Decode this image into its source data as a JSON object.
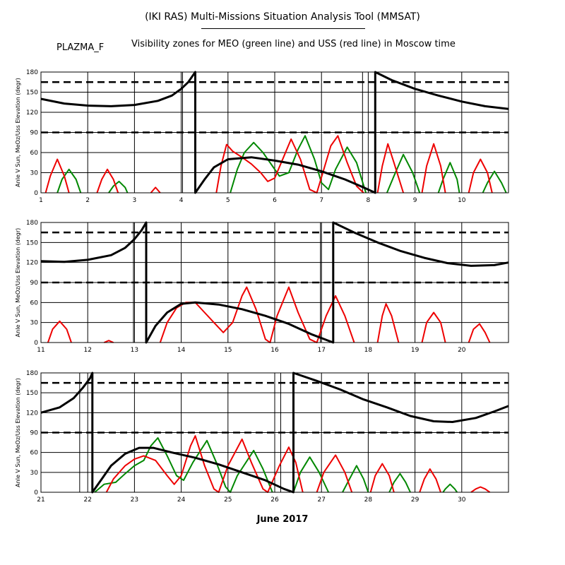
{
  "header": {
    "title": "(IKI RAS) Multi-Missions Situation Analysis Tool (MMSAT)",
    "satellite": "PLAZMA_F",
    "subtitle": "Visibility zones for MEO (green line) and USS (red line) in Moscow time"
  },
  "footer": {
    "month": "June 2017"
  },
  "colors": {
    "sun": "#000000",
    "meo": "#008800",
    "uss": "#ee0000"
  },
  "chart_data": [
    {
      "type": "line",
      "ylabel": "Anle V Sun, MeOz/Uss Elevation (degr)",
      "xlim": [
        1,
        11
      ],
      "ylim": [
        0,
        180
      ],
      "x_ticks": [
        1,
        2,
        3,
        4,
        5,
        6,
        7,
        8,
        9,
        10
      ],
      "y_ticks": [
        0,
        30,
        60,
        90,
        120,
        150,
        180
      ],
      "reference_lines": [
        90,
        165
      ],
      "vertical_markers": [
        4.3,
        8.15
      ],
      "sun_angle": [
        [
          1.0,
          140
        ],
        [
          1.5,
          133
        ],
        [
          2.0,
          130
        ],
        [
          2.5,
          129
        ],
        [
          3.0,
          131
        ],
        [
          3.5,
          137
        ],
        [
          3.8,
          145
        ],
        [
          4.0,
          155
        ],
        [
          4.15,
          165
        ],
        [
          4.3,
          180
        ],
        [
          4.3,
          0
        ],
        [
          4.5,
          20
        ],
        [
          4.7,
          38
        ],
        [
          5.0,
          50
        ],
        [
          5.5,
          53
        ],
        [
          6.0,
          48
        ],
        [
          6.5,
          42
        ],
        [
          7.0,
          32
        ],
        [
          7.5,
          20
        ],
        [
          7.9,
          8
        ],
        [
          8.15,
          0
        ],
        [
          8.15,
          180
        ],
        [
          8.5,
          168
        ],
        [
          9.0,
          155
        ],
        [
          9.5,
          145
        ],
        [
          10.0,
          136
        ],
        [
          10.5,
          129
        ],
        [
          11.0,
          125
        ]
      ],
      "uss": [
        [
          1.1,
          0
        ],
        [
          1.2,
          25
        ],
        [
          1.35,
          50
        ],
        [
          1.5,
          25
        ],
        [
          1.6,
          0
        ],
        [
          null,
          null
        ],
        [
          2.2,
          0
        ],
        [
          2.3,
          20
        ],
        [
          2.42,
          35
        ],
        [
          2.55,
          20
        ],
        [
          2.65,
          0
        ],
        [
          null,
          null
        ],
        [
          3.35,
          0
        ],
        [
          3.45,
          8
        ],
        [
          3.55,
          0
        ],
        [
          null,
          null
        ],
        [
          4.75,
          0
        ],
        [
          4.85,
          40
        ],
        [
          4.97,
          72
        ],
        [
          5.1,
          62
        ],
        [
          5.3,
          53
        ],
        [
          5.5,
          43
        ],
        [
          5.7,
          30
        ],
        [
          5.85,
          17
        ],
        [
          6.0,
          22
        ],
        [
          6.2,
          55
        ],
        [
          6.35,
          80
        ],
        [
          6.55,
          50
        ],
        [
          6.75,
          5
        ],
        [
          6.9,
          0
        ],
        [
          7.05,
          35
        ],
        [
          7.2,
          70
        ],
        [
          7.35,
          85
        ],
        [
          7.55,
          45
        ],
        [
          7.75,
          10
        ],
        [
          7.9,
          0
        ],
        [
          null,
          null
        ],
        [
          8.2,
          0
        ],
        [
          8.3,
          40
        ],
        [
          8.42,
          73
        ],
        [
          8.55,
          45
        ],
        [
          8.75,
          0
        ],
        [
          null,
          null
        ],
        [
          9.15,
          0
        ],
        [
          9.25,
          40
        ],
        [
          9.4,
          73
        ],
        [
          9.55,
          40
        ],
        [
          9.65,
          0
        ],
        [
          null,
          null
        ],
        [
          10.15,
          0
        ],
        [
          10.25,
          30
        ],
        [
          10.4,
          50
        ],
        [
          10.55,
          30
        ],
        [
          10.65,
          0
        ]
      ],
      "meo": [
        [
          1.35,
          0
        ],
        [
          1.45,
          20
        ],
        [
          1.6,
          35
        ],
        [
          1.75,
          20
        ],
        [
          1.85,
          0
        ],
        [
          null,
          null
        ],
        [
          2.45,
          0
        ],
        [
          2.55,
          10
        ],
        [
          2.67,
          17
        ],
        [
          2.8,
          8
        ],
        [
          2.85,
          0
        ],
        [
          null,
          null
        ],
        [
          5.05,
          0
        ],
        [
          5.2,
          35
        ],
        [
          5.35,
          60
        ],
        [
          5.55,
          75
        ],
        [
          5.75,
          60
        ],
        [
          5.95,
          40
        ],
        [
          6.1,
          25
        ],
        [
          6.3,
          30
        ],
        [
          6.5,
          65
        ],
        [
          6.65,
          85
        ],
        [
          6.85,
          50
        ],
        [
          7.0,
          15
        ],
        [
          7.15,
          5
        ],
        [
          7.3,
          35
        ],
        [
          7.55,
          68
        ],
        [
          7.75,
          45
        ],
        [
          7.95,
          0
        ],
        [
          null,
          null
        ],
        [
          8.4,
          0
        ],
        [
          8.55,
          25
        ],
        [
          8.75,
          57
        ],
        [
          8.95,
          30
        ],
        [
          9.1,
          0
        ],
        [
          null,
          null
        ],
        [
          9.5,
          0
        ],
        [
          9.6,
          20
        ],
        [
          9.75,
          45
        ],
        [
          9.9,
          20
        ],
        [
          9.95,
          0
        ],
        [
          null,
          null
        ],
        [
          10.45,
          0
        ],
        [
          10.55,
          15
        ],
        [
          10.7,
          32
        ],
        [
          10.85,
          15
        ],
        [
          10.95,
          0
        ]
      ]
    },
    {
      "type": "line",
      "ylabel": "Anle V Sun, MeOz/Uss Elevation (degr)",
      "xlim": [
        11,
        21
      ],
      "ylim": [
        0,
        180
      ],
      "x_ticks": [
        11,
        12,
        13,
        14,
        15,
        16,
        17,
        18,
        19,
        20
      ],
      "y_ticks": [
        0,
        30,
        60,
        90,
        120,
        150,
        180
      ],
      "reference_lines": [
        90,
        165
      ],
      "vertical_markers": [
        13.25,
        17.25
      ],
      "sun_angle": [
        [
          11.0,
          122
        ],
        [
          11.5,
          121
        ],
        [
          12.0,
          124
        ],
        [
          12.5,
          131
        ],
        [
          12.8,
          142
        ],
        [
          13.0,
          155
        ],
        [
          13.15,
          168
        ],
        [
          13.25,
          180
        ],
        [
          13.25,
          0
        ],
        [
          13.45,
          25
        ],
        [
          13.7,
          45
        ],
        [
          14.0,
          58
        ],
        [
          14.3,
          60
        ],
        [
          14.8,
          57
        ],
        [
          15.3,
          50
        ],
        [
          15.8,
          40
        ],
        [
          16.3,
          28
        ],
        [
          16.8,
          12
        ],
        [
          17.25,
          0
        ],
        [
          17.25,
          180
        ],
        [
          17.7,
          165
        ],
        [
          18.2,
          150
        ],
        [
          18.7,
          137
        ],
        [
          19.2,
          127
        ],
        [
          19.7,
          119
        ],
        [
          20.2,
          115
        ],
        [
          20.7,
          116
        ],
        [
          21.0,
          120
        ]
      ],
      "uss": [
        [
          11.15,
          0
        ],
        [
          11.25,
          20
        ],
        [
          11.4,
          32
        ],
        [
          11.55,
          20
        ],
        [
          11.65,
          0
        ],
        [
          null,
          null
        ],
        [
          12.35,
          0
        ],
        [
          12.45,
          3
        ],
        [
          12.55,
          0
        ],
        [
          null,
          null
        ],
        [
          13.55,
          0
        ],
        [
          13.7,
          30
        ],
        [
          13.9,
          52
        ],
        [
          14.1,
          60
        ],
        [
          14.3,
          60
        ],
        [
          14.5,
          45
        ],
        [
          14.7,
          30
        ],
        [
          14.9,
          15
        ],
        [
          15.1,
          30
        ],
        [
          15.3,
          70
        ],
        [
          15.4,
          83
        ],
        [
          15.6,
          50
        ],
        [
          15.8,
          5
        ],
        [
          15.9,
          0
        ],
        [
          16.05,
          40
        ],
        [
          16.3,
          83
        ],
        [
          16.5,
          45
        ],
        [
          16.75,
          5
        ],
        [
          16.9,
          0
        ],
        [
          17.1,
          40
        ],
        [
          17.3,
          70
        ],
        [
          17.5,
          40
        ],
        [
          17.7,
          0
        ],
        [
          null,
          null
        ],
        [
          18.2,
          0
        ],
        [
          18.3,
          40
        ],
        [
          18.38,
          58
        ],
        [
          18.5,
          40
        ],
        [
          18.65,
          0
        ],
        [
          null,
          null
        ],
        [
          19.15,
          0
        ],
        [
          19.25,
          30
        ],
        [
          19.4,
          45
        ],
        [
          19.55,
          30
        ],
        [
          19.65,
          0
        ],
        [
          null,
          null
        ],
        [
          20.15,
          0
        ],
        [
          20.25,
          20
        ],
        [
          20.38,
          28
        ],
        [
          20.5,
          15
        ],
        [
          20.6,
          0
        ]
      ]
    },
    {
      "type": "line",
      "ylabel": "Anle V Sun, MeOz/Uss Elevation (degr)",
      "xlim": [
        21,
        31
      ],
      "ylim": [
        0,
        180
      ],
      "x_ticks": [
        21,
        22,
        23,
        24,
        25,
        26,
        27,
        28,
        29,
        30
      ],
      "y_ticks": [
        0,
        30,
        60,
        90,
        120,
        150,
        180
      ],
      "reference_lines": [
        90,
        165
      ],
      "vertical_markers": [
        22.1,
        26.4
      ],
      "sun_angle": [
        [
          21.0,
          120
        ],
        [
          21.4,
          128
        ],
        [
          21.7,
          142
        ],
        [
          21.9,
          158
        ],
        [
          22.05,
          172
        ],
        [
          22.1,
          180
        ],
        [
          22.1,
          0
        ],
        [
          22.3,
          20
        ],
        [
          22.5,
          40
        ],
        [
          22.8,
          58
        ],
        [
          23.1,
          67
        ],
        [
          23.4,
          67
        ],
        [
          23.8,
          60
        ],
        [
          24.3,
          52
        ],
        [
          24.8,
          42
        ],
        [
          25.3,
          30
        ],
        [
          25.8,
          18
        ],
        [
          26.2,
          5
        ],
        [
          26.4,
          0
        ],
        [
          26.4,
          180
        ],
        [
          26.9,
          168
        ],
        [
          27.4,
          155
        ],
        [
          27.9,
          140
        ],
        [
          28.4,
          128
        ],
        [
          28.9,
          115
        ],
        [
          29.4,
          107
        ],
        [
          29.8,
          106
        ],
        [
          30.3,
          112
        ],
        [
          30.7,
          122
        ],
        [
          31.0,
          130
        ]
      ],
      "uss": [
        [
          22.4,
          0
        ],
        [
          22.55,
          20
        ],
        [
          22.8,
          40
        ],
        [
          23.0,
          50
        ],
        [
          23.2,
          55
        ],
        [
          23.45,
          48
        ],
        [
          23.7,
          25
        ],
        [
          23.85,
          12
        ],
        [
          24.0,
          25
        ],
        [
          24.2,
          70
        ],
        [
          24.3,
          85
        ],
        [
          24.5,
          40
        ],
        [
          24.7,
          5
        ],
        [
          24.8,
          0
        ],
        [
          25.0,
          40
        ],
        [
          25.3,
          80
        ],
        [
          25.5,
          45
        ],
        [
          25.75,
          5
        ],
        [
          25.85,
          0
        ],
        [
          26.1,
          40
        ],
        [
          26.3,
          68
        ],
        [
          26.45,
          45
        ],
        [
          26.6,
          0
        ],
        [
          null,
          null
        ],
        [
          26.9,
          0
        ],
        [
          27.05,
          30
        ],
        [
          27.3,
          56
        ],
        [
          27.5,
          30
        ],
        [
          27.65,
          0
        ],
        [
          null,
          null
        ],
        [
          28.05,
          0
        ],
        [
          28.15,
          25
        ],
        [
          28.3,
          43
        ],
        [
          28.45,
          25
        ],
        [
          28.55,
          0
        ],
        [
          null,
          null
        ],
        [
          29.1,
          0
        ],
        [
          29.2,
          20
        ],
        [
          29.32,
          35
        ],
        [
          29.45,
          20
        ],
        [
          29.55,
          0
        ],
        [
          null,
          null
        ],
        [
          30.2,
          0
        ],
        [
          30.3,
          5
        ],
        [
          30.4,
          8
        ],
        [
          30.5,
          5
        ],
        [
          30.6,
          0
        ]
      ],
      "meo": [
        [
          22.15,
          0
        ],
        [
          22.35,
          12
        ],
        [
          22.6,
          15
        ],
        [
          22.8,
          28
        ],
        [
          23.0,
          40
        ],
        [
          23.2,
          48
        ],
        [
          23.35,
          70
        ],
        [
          23.5,
          82
        ],
        [
          23.7,
          55
        ],
        [
          23.9,
          25
        ],
        [
          24.05,
          18
        ],
        [
          24.25,
          45
        ],
        [
          24.55,
          78
        ],
        [
          24.75,
          45
        ],
        [
          24.95,
          8
        ],
        [
          25.05,
          0
        ],
        [
          25.2,
          25
        ],
        [
          25.55,
          63
        ],
        [
          25.75,
          35
        ],
        [
          25.95,
          0
        ],
        [
          null,
          null
        ],
        [
          26.4,
          0
        ],
        [
          26.55,
          30
        ],
        [
          26.75,
          53
        ],
        [
          26.95,
          30
        ],
        [
          27.15,
          0
        ],
        [
          null,
          null
        ],
        [
          27.45,
          0
        ],
        [
          27.6,
          20
        ],
        [
          27.75,
          40
        ],
        [
          27.9,
          20
        ],
        [
          28.0,
          0
        ],
        [
          null,
          null
        ],
        [
          28.45,
          0
        ],
        [
          28.55,
          15
        ],
        [
          28.68,
          28
        ],
        [
          28.8,
          15
        ],
        [
          28.9,
          0
        ],
        [
          null,
          null
        ],
        [
          29.6,
          0
        ],
        [
          29.65,
          5
        ],
        [
          29.75,
          12
        ],
        [
          29.85,
          5
        ],
        [
          29.9,
          0
        ]
      ]
    }
  ]
}
